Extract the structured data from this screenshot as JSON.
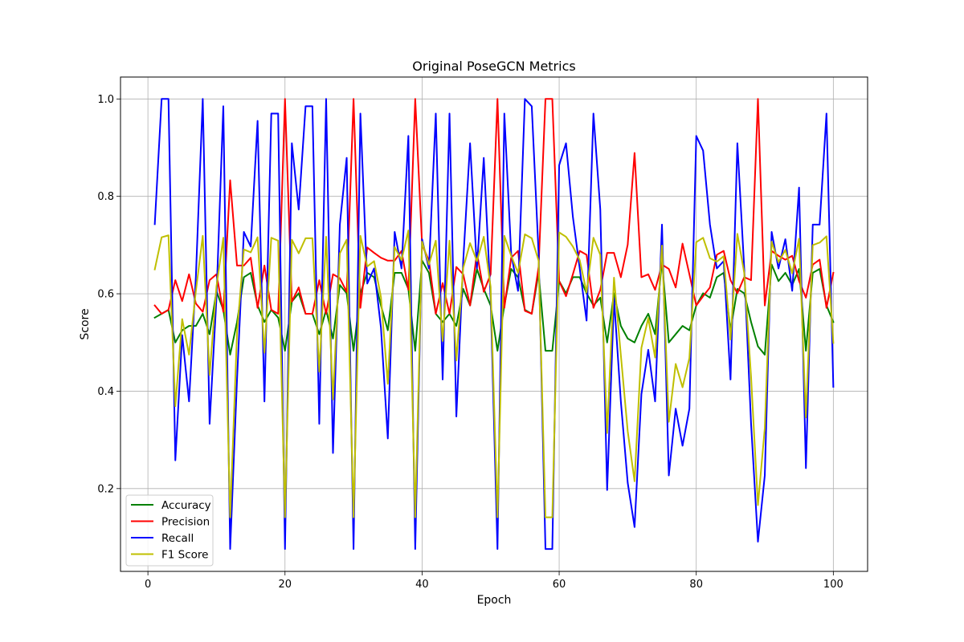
{
  "chart_data": {
    "type": "line",
    "title": "Original PoseGCN Metrics",
    "xlabel": "Epoch",
    "ylabel": "Score",
    "xlim": [
      -4,
      105
    ],
    "ylim": [
      0.03,
      1.045
    ],
    "xticks": [
      0,
      20,
      40,
      60,
      80,
      100
    ],
    "yticks": [
      0.2,
      0.4,
      0.6,
      0.8,
      1.0
    ],
    "xtick_labels": [
      "0",
      "20",
      "40",
      "60",
      "80",
      "100"
    ],
    "ytick_labels": [
      "0.2",
      "0.4",
      "0.6",
      "0.8",
      "1.0"
    ],
    "grid": true,
    "legend_position": "lower-left",
    "x": [
      1,
      2,
      3,
      4,
      5,
      6,
      7,
      8,
      9,
      10,
      11,
      12,
      13,
      14,
      15,
      16,
      17,
      18,
      19,
      20,
      21,
      22,
      23,
      24,
      25,
      26,
      27,
      28,
      29,
      30,
      31,
      32,
      33,
      34,
      35,
      36,
      37,
      38,
      39,
      40,
      41,
      42,
      43,
      44,
      45,
      46,
      47,
      48,
      49,
      50,
      51,
      52,
      53,
      54,
      55,
      56,
      57,
      58,
      59,
      60,
      61,
      62,
      63,
      64,
      65,
      66,
      67,
      68,
      69,
      70,
      71,
      72,
      73,
      74,
      75,
      76,
      77,
      78,
      79,
      80,
      81,
      82,
      83,
      84,
      85,
      86,
      87,
      88,
      89,
      90,
      91,
      92,
      93,
      94,
      95,
      96,
      97,
      98,
      99,
      100
    ],
    "series": [
      {
        "name": "Accuracy",
        "color": "#008000",
        "values": [
          0.551,
          0.559,
          0.567,
          0.5,
          0.525,
          0.534,
          0.534,
          0.559,
          0.517,
          0.605,
          0.567,
          0.475,
          0.542,
          0.634,
          0.643,
          0.576,
          0.542,
          0.567,
          0.551,
          0.483,
          0.584,
          0.601,
          0.559,
          0.559,
          0.517,
          0.567,
          0.508,
          0.618,
          0.601,
          0.483,
          0.601,
          0.643,
          0.634,
          0.576,
          0.525,
          0.643,
          0.643,
          0.61,
          0.483,
          0.668,
          0.643,
          0.559,
          0.542,
          0.559,
          0.534,
          0.61,
          0.576,
          0.651,
          0.61,
          0.576,
          0.483,
          0.576,
          0.651,
          0.634,
          0.567,
          0.559,
          0.643,
          0.483,
          0.483,
          0.626,
          0.601,
          0.634,
          0.634,
          0.601,
          0.576,
          0.592,
          0.5,
          0.601,
          0.534,
          0.508,
          0.5,
          0.534,
          0.559,
          0.517,
          0.668,
          0.5,
          0.517,
          0.534,
          0.525,
          0.576,
          0.601,
          0.592,
          0.634,
          0.643,
          0.525,
          0.61,
          0.601,
          0.542,
          0.492,
          0.475,
          0.66,
          0.626,
          0.643,
          0.618,
          0.651,
          0.483,
          0.643,
          0.651,
          0.576,
          0.542
        ]
      },
      {
        "name": "Precision",
        "color": "#ff0000",
        "values": [
          0.576,
          0.559,
          0.567,
          0.628,
          0.585,
          0.64,
          0.58,
          0.563,
          0.628,
          0.64,
          0.563,
          0.833,
          0.658,
          0.658,
          0.674,
          0.571,
          0.658,
          0.567,
          0.559,
          1.0,
          0.584,
          0.613,
          0.559,
          0.559,
          0.628,
          0.559,
          0.64,
          0.632,
          0.604,
          1.0,
          0.571,
          0.695,
          0.684,
          0.674,
          0.668,
          0.668,
          0.688,
          0.608,
          1.0,
          0.701,
          0.668,
          0.559,
          0.622,
          0.559,
          0.655,
          0.64,
          0.576,
          0.684,
          0.604,
          0.64,
          1.0,
          0.571,
          0.674,
          0.688,
          0.565,
          0.559,
          0.655,
          1.0,
          1.0,
          0.626,
          0.595,
          0.64,
          0.688,
          0.68,
          0.571,
          0.608,
          0.684,
          0.684,
          0.634,
          0.701,
          0.889,
          0.634,
          0.64,
          0.608,
          0.66,
          0.651,
          0.613,
          0.703,
          0.64,
          0.576,
          0.595,
          0.613,
          0.68,
          0.688,
          0.628,
          0.601,
          0.634,
          0.628,
          1.0,
          0.576,
          0.688,
          0.678,
          0.67,
          0.678,
          0.626,
          0.592,
          0.66,
          0.67,
          0.571,
          0.643
        ]
      },
      {
        "name": "Recall",
        "color": "#0000ff",
        "values": [
          0.743,
          1.0,
          1.0,
          0.258,
          0.515,
          0.379,
          0.636,
          1.0,
          0.333,
          0.591,
          0.985,
          0.076,
          0.424,
          0.727,
          0.697,
          0.955,
          0.379,
          0.97,
          0.97,
          0.076,
          0.909,
          0.773,
          0.985,
          0.985,
          0.333,
          1.0,
          0.273,
          0.742,
          0.879,
          0.076,
          0.97,
          0.621,
          0.652,
          0.53,
          0.303,
          0.727,
          0.652,
          0.924,
          0.076,
          0.712,
          0.652,
          0.97,
          0.424,
          0.97,
          0.348,
          0.667,
          0.909,
          0.652,
          0.879,
          0.591,
          0.076,
          0.97,
          0.682,
          0.606,
          1.0,
          0.985,
          0.682,
          0.076,
          0.076,
          0.864,
          0.909,
          0.758,
          0.652,
          0.545,
          0.97,
          0.773,
          0.197,
          0.591,
          0.379,
          0.212,
          0.121,
          0.394,
          0.485,
          0.379,
          0.742,
          0.227,
          0.364,
          0.288,
          0.364,
          0.924,
          0.894,
          0.742,
          0.652,
          0.667,
          0.424,
          0.909,
          0.652,
          0.333,
          0.091,
          0.227,
          0.727,
          0.652,
          0.712,
          0.606,
          0.818,
          0.242,
          0.742,
          0.742,
          0.97,
          0.409
        ]
      },
      {
        "name": "F1 Score",
        "color": "#bfbf00",
        "values": [
          0.65,
          0.716,
          0.72,
          0.369,
          0.548,
          0.475,
          0.606,
          0.719,
          0.433,
          0.615,
          0.715,
          0.141,
          0.52,
          0.691,
          0.685,
          0.716,
          0.479,
          0.715,
          0.709,
          0.141,
          0.711,
          0.683,
          0.714,
          0.714,
          0.44,
          0.717,
          0.383,
          0.683,
          0.711,
          0.141,
          0.719,
          0.656,
          0.667,
          0.593,
          0.415,
          0.696,
          0.669,
          0.73,
          0.141,
          0.707,
          0.66,
          0.709,
          0.503,
          0.709,
          0.463,
          0.653,
          0.704,
          0.667,
          0.717,
          0.614,
          0.141,
          0.719,
          0.678,
          0.643,
          0.722,
          0.714,
          0.668,
          0.141,
          0.141,
          0.726,
          0.717,
          0.697,
          0.669,
          0.603,
          0.715,
          0.68,
          0.314,
          0.633,
          0.474,
          0.318,
          0.215,
          0.489,
          0.55,
          0.469,
          0.699,
          0.337,
          0.456,
          0.408,
          0.468,
          0.706,
          0.715,
          0.673,
          0.666,
          0.677,
          0.506,
          0.723,
          0.643,
          0.429,
          0.166,
          0.324,
          0.707,
          0.665,
          0.69,
          0.642,
          0.713,
          0.346,
          0.7,
          0.705,
          0.718,
          0.499
        ]
      }
    ]
  }
}
